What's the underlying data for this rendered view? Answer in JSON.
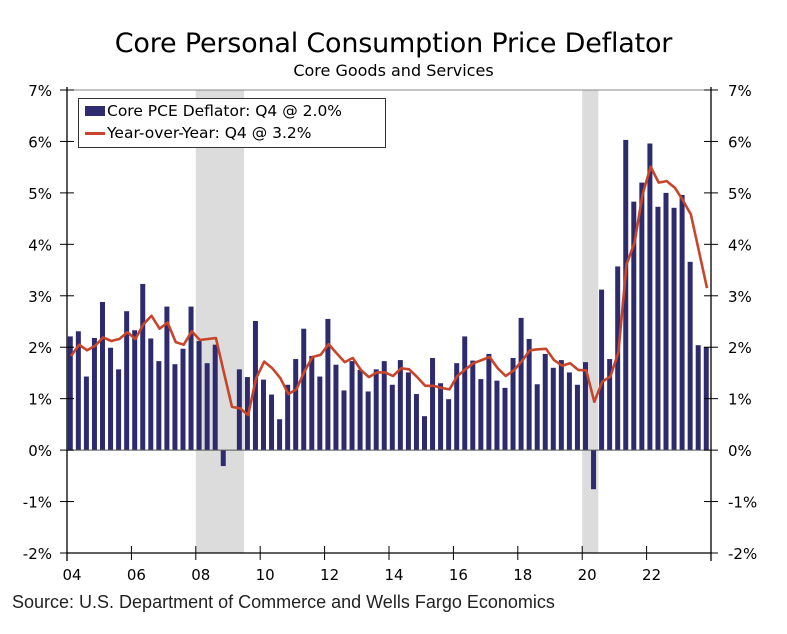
{
  "title": "Core Personal Consumption Price Deflator",
  "subtitle": "Core Goods and Services",
  "source": "Source: U.S. Department of Commerce and Wells Fargo Economics",
  "colors": {
    "bar": "#2e2a6e",
    "line": "#c8452a",
    "recession": "#dcdcdc",
    "axis": "#000000"
  },
  "chart_data": {
    "type": "bar",
    "title": "Core Personal Consumption Price Deflator",
    "subtitle": "Core Goods and Services",
    "xlabel": "",
    "ylabel": "",
    "ylim": [
      -2,
      7
    ],
    "yticks": [
      -2,
      -1,
      0,
      1,
      2,
      3,
      4,
      5,
      6,
      7
    ],
    "ytick_labels": [
      "-2%",
      "-1%",
      "0%",
      "1%",
      "2%",
      "3%",
      "4%",
      "5%",
      "6%",
      "7%"
    ],
    "secondary_y": true,
    "x_start": "2004Q1",
    "x_end": "2023Q4",
    "xticks": [
      "04",
      "06",
      "08",
      "10",
      "12",
      "14",
      "16",
      "18",
      "20",
      "22"
    ],
    "xtick_years": [
      2004,
      2006,
      2008,
      2010,
      2012,
      2014,
      2016,
      2018,
      2020,
      2022
    ],
    "legend_position": "top-left",
    "recessions": [
      {
        "start": 2008.0,
        "end": 2009.5
      },
      {
        "start": 2020.0,
        "end": 2020.5
      }
    ],
    "legend": [
      "Core PCE Deflator: Q4 @ 2.0%",
      "Year-over-Year: Q4 @ 3.2%"
    ],
    "series": [
      {
        "name": "Core PCE Deflator: Q4 @ 2.0%",
        "type": "bar",
        "values": [
          2.21,
          2.31,
          1.43,
          2.18,
          2.88,
          1.99,
          1.57,
          2.7,
          2.33,
          3.23,
          2.17,
          1.73,
          2.79,
          1.67,
          1.97,
          2.79,
          2.12,
          1.69,
          2.05,
          -0.31,
          0.0,
          1.57,
          1.42,
          2.51,
          1.37,
          1.08,
          0.6,
          1.27,
          1.77,
          2.36,
          1.83,
          1.43,
          2.55,
          1.66,
          1.16,
          1.73,
          1.56,
          1.14,
          1.57,
          1.73,
          1.27,
          1.75,
          1.51,
          1.09,
          0.66,
          1.79,
          1.3,
          0.99,
          1.69,
          2.21,
          1.74,
          1.38,
          1.87,
          1.35,
          1.21,
          1.79,
          2.57,
          2.16,
          1.28,
          1.87,
          1.6,
          1.75,
          1.51,
          1.27,
          1.71,
          -0.76,
          3.12,
          1.77,
          3.57,
          6.03,
          4.83,
          5.2,
          5.96,
          4.73,
          5.0,
          4.71,
          4.96,
          3.66,
          2.04,
          2.0
        ]
      },
      {
        "name": "Year-over-Year: Q4 @ 3.2%",
        "type": "line",
        "values": [
          1.83,
          2.05,
          1.94,
          2.03,
          2.19,
          2.12,
          2.16,
          2.29,
          2.16,
          2.45,
          2.61,
          2.36,
          2.48,
          2.1,
          2.05,
          2.31,
          2.14,
          2.16,
          2.18,
          1.5,
          0.84,
          0.81,
          0.68,
          1.4,
          1.72,
          1.59,
          1.4,
          1.09,
          1.18,
          1.53,
          1.81,
          1.85,
          2.06,
          1.88,
          1.71,
          1.79,
          1.56,
          1.42,
          1.51,
          1.51,
          1.44,
          1.59,
          1.57,
          1.42,
          1.25,
          1.25,
          1.21,
          1.18,
          1.44,
          1.57,
          1.69,
          1.75,
          1.81,
          1.59,
          1.44,
          1.55,
          1.73,
          1.94,
          1.96,
          1.97,
          1.75,
          1.64,
          1.69,
          1.56,
          1.55,
          0.94,
          1.33,
          1.43,
          1.9,
          3.61,
          4.03,
          4.97,
          5.51,
          5.2,
          5.23,
          5.1,
          4.86,
          4.58,
          3.87,
          3.15
        ]
      }
    ]
  }
}
